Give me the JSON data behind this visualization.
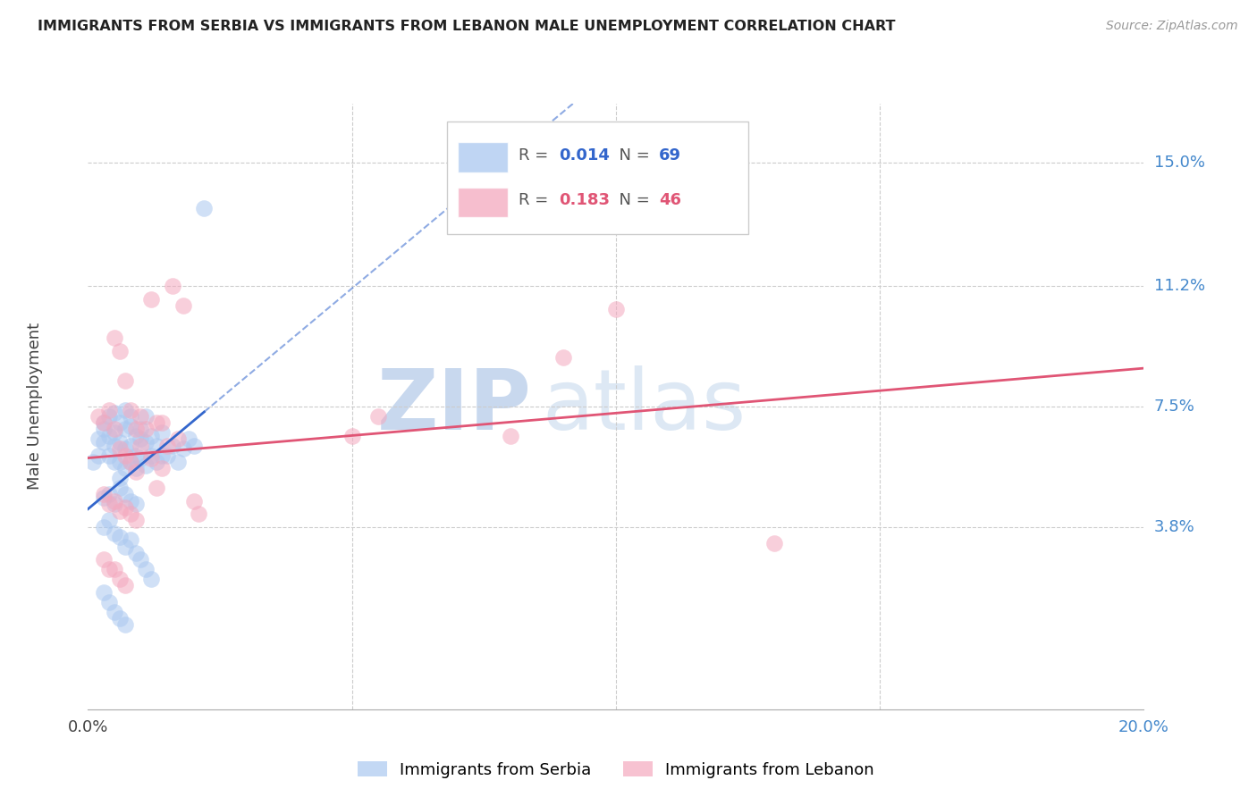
{
  "title": "IMMIGRANTS FROM SERBIA VS IMMIGRANTS FROM LEBANON MALE UNEMPLOYMENT CORRELATION CHART",
  "source": "Source: ZipAtlas.com",
  "ylabel": "Male Unemployment",
  "xlim": [
    0.0,
    0.2
  ],
  "ylim": [
    -0.018,
    0.168
  ],
  "ytick_values": [
    0.038,
    0.075,
    0.112,
    0.15
  ],
  "ytick_labels": [
    "3.8%",
    "7.5%",
    "11.2%",
    "15.0%"
  ],
  "xtick_values": [
    0.0,
    0.05,
    0.1,
    0.15,
    0.2
  ],
  "serbia_color": "#aac8f0",
  "lebanon_color": "#f4a8be",
  "serbia_line_color": "#3366cc",
  "lebanon_line_color": "#e05575",
  "serbia_R": "0.014",
  "serbia_N": "69",
  "lebanon_R": "0.183",
  "lebanon_N": "46",
  "watermark_zip": "ZIP",
  "watermark_atlas": "atlas",
  "serbia_x": [
    0.001,
    0.002,
    0.002,
    0.003,
    0.003,
    0.003,
    0.004,
    0.004,
    0.004,
    0.005,
    0.005,
    0.005,
    0.005,
    0.006,
    0.006,
    0.006,
    0.006,
    0.007,
    0.007,
    0.007,
    0.007,
    0.008,
    0.008,
    0.008,
    0.008,
    0.009,
    0.009,
    0.009,
    0.01,
    0.01,
    0.01,
    0.011,
    0.011,
    0.011,
    0.012,
    0.012,
    0.013,
    0.013,
    0.014,
    0.014,
    0.015,
    0.016,
    0.017,
    0.018,
    0.019,
    0.02,
    0.003,
    0.004,
    0.005,
    0.006,
    0.007,
    0.008,
    0.009,
    0.003,
    0.004,
    0.005,
    0.006,
    0.007,
    0.008,
    0.009,
    0.01,
    0.011,
    0.012,
    0.003,
    0.004,
    0.005,
    0.006,
    0.007,
    0.022
  ],
  "serbia_y": [
    0.058,
    0.065,
    0.06,
    0.068,
    0.064,
    0.07,
    0.072,
    0.066,
    0.06,
    0.073,
    0.067,
    0.063,
    0.058,
    0.07,
    0.064,
    0.058,
    0.053,
    0.068,
    0.074,
    0.062,
    0.056,
    0.069,
    0.063,
    0.058,
    0.072,
    0.066,
    0.06,
    0.056,
    0.065,
    0.059,
    0.068,
    0.064,
    0.057,
    0.072,
    0.066,
    0.06,
    0.063,
    0.058,
    0.067,
    0.06,
    0.06,
    0.063,
    0.058,
    0.062,
    0.065,
    0.063,
    0.047,
    0.048,
    0.045,
    0.05,
    0.048,
    0.046,
    0.045,
    0.038,
    0.04,
    0.036,
    0.035,
    0.032,
    0.034,
    0.03,
    0.028,
    0.025,
    0.022,
    0.018,
    0.015,
    0.012,
    0.01,
    0.008,
    0.136
  ],
  "lebanon_x": [
    0.002,
    0.003,
    0.004,
    0.005,
    0.005,
    0.006,
    0.006,
    0.007,
    0.007,
    0.008,
    0.008,
    0.009,
    0.009,
    0.01,
    0.01,
    0.011,
    0.012,
    0.013,
    0.014,
    0.015,
    0.003,
    0.004,
    0.005,
    0.006,
    0.007,
    0.008,
    0.009,
    0.003,
    0.004,
    0.005,
    0.006,
    0.007,
    0.013,
    0.02,
    0.021,
    0.017,
    0.055,
    0.08,
    0.1,
    0.13,
    0.016,
    0.018,
    0.012,
    0.014,
    0.05,
    0.09
  ],
  "lebanon_y": [
    0.072,
    0.07,
    0.074,
    0.068,
    0.096,
    0.062,
    0.092,
    0.06,
    0.083,
    0.058,
    0.074,
    0.055,
    0.068,
    0.063,
    0.072,
    0.068,
    0.059,
    0.07,
    0.056,
    0.063,
    0.048,
    0.045,
    0.046,
    0.043,
    0.044,
    0.042,
    0.04,
    0.028,
    0.025,
    0.025,
    0.022,
    0.02,
    0.05,
    0.046,
    0.042,
    0.065,
    0.072,
    0.066,
    0.105,
    0.033,
    0.112,
    0.106,
    0.108,
    0.07,
    0.066,
    0.09
  ]
}
